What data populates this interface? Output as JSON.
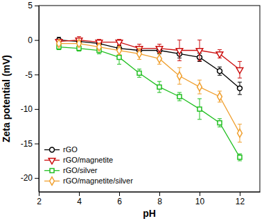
{
  "chart_data": {
    "type": "line",
    "x_label": "pH",
    "y_label": "Zeta potential (mV)",
    "x": [
      3,
      4,
      5,
      6,
      7,
      8,
      9,
      10,
      11,
      12
    ],
    "xlim": [
      2,
      13
    ],
    "xticks": [
      2,
      4,
      6,
      8,
      10,
      12
    ],
    "ylim": [
      -22,
      5
    ],
    "yticks": [
      -20,
      -15,
      -10,
      -5,
      0,
      5
    ],
    "grid": false,
    "legend": "lower left",
    "series": [
      {
        "name": "rGO",
        "color": "#000000",
        "marker": "circle",
        "values": [
          0,
          -0.2,
          -0.5,
          -1.2,
          -1.5,
          -1.5,
          -2,
          -2.5,
          -4.5,
          -7
        ],
        "errors": [
          0.4,
          0.4,
          0.3,
          0.4,
          0.5,
          0.5,
          0.6,
          0.6,
          0.6,
          0.9
        ]
      },
      {
        "name": "rGO/magnetite",
        "color": "#cc1010",
        "marker": "triangle-down",
        "values": [
          -0.2,
          0,
          -0.3,
          -0.3,
          -1.2,
          -1.2,
          -1.5,
          -1.5,
          -2,
          -4.3
        ],
        "errors": [
          0.3,
          0.5,
          0.4,
          0.4,
          0.6,
          0.6,
          1.5,
          1.5,
          0.6,
          1.2
        ]
      },
      {
        "name": "rGO/silver",
        "color": "#22c022",
        "marker": "square",
        "values": [
          -1,
          -1.2,
          -1.5,
          -2.5,
          -4.8,
          -6.8,
          -8.2,
          -10,
          -12,
          -17
        ],
        "errors": [
          0.4,
          0.4,
          0.5,
          1,
          0.6,
          0.8,
          0.6,
          1.5,
          0.6,
          0.5
        ]
      },
      {
        "name": "rGO/magnetite/silver",
        "color": "#f0a030",
        "marker": "diamond",
        "values": [
          -0.5,
          -0.5,
          -1,
          -1.5,
          -2,
          -2.7,
          -5.2,
          -6.8,
          -8.2,
          -13.5
        ],
        "errors": [
          0.3,
          0.4,
          0.4,
          0.6,
          0.8,
          0.8,
          1.2,
          1.0,
          0.8,
          1.3
        ]
      }
    ]
  }
}
